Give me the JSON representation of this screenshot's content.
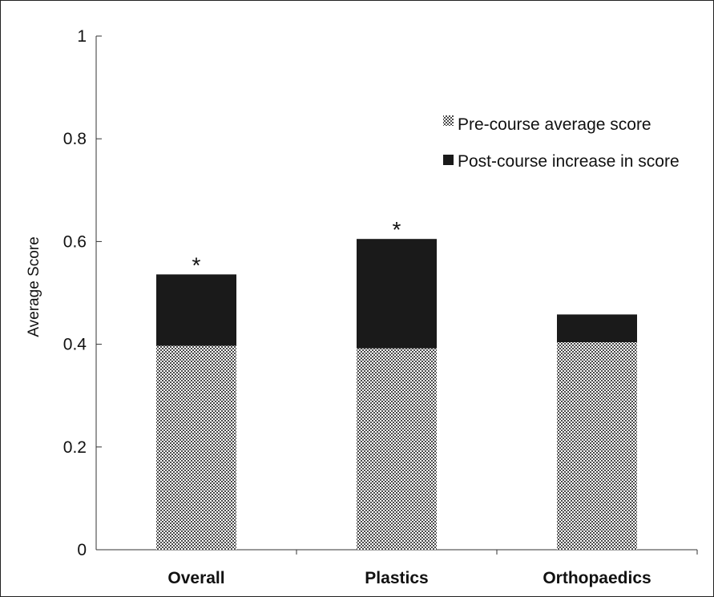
{
  "chart_data": {
    "type": "bar",
    "stacked": true,
    "categories": [
      "Overall",
      "Plastics",
      "Orthopaedics"
    ],
    "series": [
      {
        "name": "Pre-course average score",
        "values": [
          0.397,
          0.392,
          0.404
        ],
        "color": "#9a9a9a",
        "pattern": "checker"
      },
      {
        "name": "Post-course increase in score",
        "values": [
          0.139,
          0.213,
          0.054
        ],
        "color": "#1a1a1a"
      }
    ],
    "annotations": [
      "*",
      "*",
      ""
    ],
    "ylabel": "Average Score",
    "xlabel": "",
    "ylim": [
      0,
      1
    ],
    "yticks": [
      "0",
      "0.2",
      "0.4",
      "0.6",
      "0.8",
      "1"
    ],
    "ytick_values": [
      0,
      0.2,
      0.4,
      0.6,
      0.8,
      1
    ],
    "legend_position": "top-right",
    "grid": false
  }
}
